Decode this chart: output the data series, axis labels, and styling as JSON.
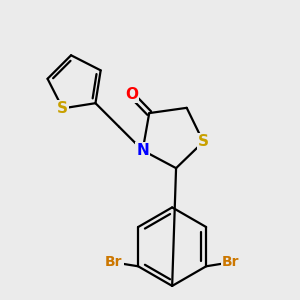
{
  "background_color": "#ebebeb",
  "atom_colors": {
    "S": "#c8a000",
    "N": "#0000ff",
    "O": "#ff0000",
    "Br": "#cc7700",
    "C": "#000000"
  },
  "bond_color": "#000000",
  "bond_width": 1.6,
  "font_size_atoms": 11,
  "font_size_br": 10
}
